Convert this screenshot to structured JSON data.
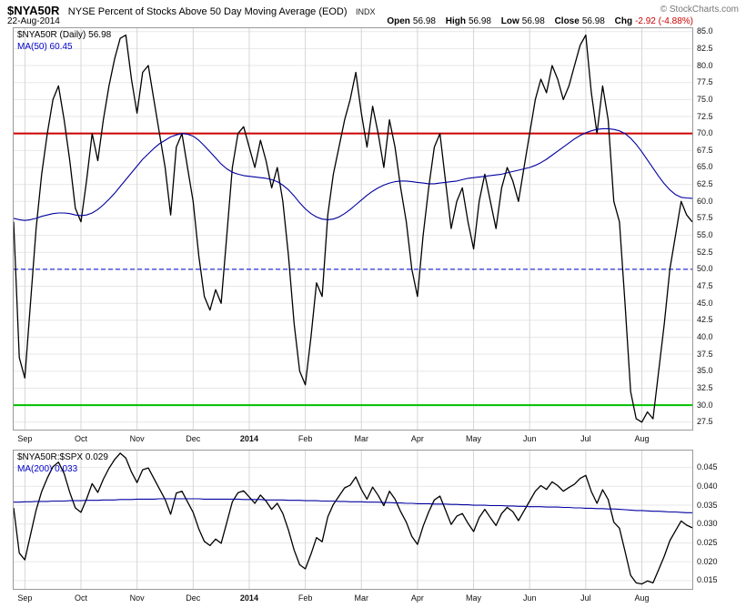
{
  "header": {
    "symbol": "$NYA50R",
    "title": "NYSE Percent of Stocks Above 50 Day Moving Average (EOD)",
    "exchange": "INDX",
    "copyright": "© StockCharts.com",
    "date": "22-Aug-2014",
    "quote": {
      "open_label": "Open",
      "open_value": "56.98",
      "high_label": "High",
      "high_value": "56.98",
      "low_label": "Low",
      "low_value": "56.98",
      "close_label": "Close",
      "close_value": "56.98",
      "chg_label": "Chg",
      "chg_value": "-2.92 (-4.88%)"
    }
  },
  "colors": {
    "price": "#000000",
    "ma": "#0000cc",
    "overbought_line": "#cc0000",
    "midline": "#0000cc",
    "oversold_line": "#00c000",
    "chg_negative": "#cc0000"
  },
  "chart_data": [
    {
      "type": "line",
      "title": "$NYA50R (Daily)",
      "legend": [
        {
          "label": "$NYA50R (Daily) 56.98",
          "color": "#000000"
        },
        {
          "label": "MA(50) 60.45",
          "color": "#0000cc"
        }
      ],
      "x_categories": [
        "Sep",
        "Oct",
        "Nov",
        "Dec",
        "2014",
        "Feb",
        "Mar",
        "Apr",
        "May",
        "Jun",
        "Jul",
        "Aug"
      ],
      "month_start_indices": [
        2,
        12,
        22,
        32,
        42,
        52,
        62,
        72,
        82,
        92,
        102,
        112
      ],
      "y_ticks": [
        "85.0",
        "82.5",
        "80.0",
        "77.5",
        "75.0",
        "72.5",
        "70.0",
        "67.5",
        "65.0",
        "62.5",
        "60.0",
        "57.5",
        "55.0",
        "52.5",
        "50.0",
        "47.5",
        "45.0",
        "42.5",
        "40.0",
        "37.5",
        "35.0",
        "32.5",
        "30.0",
        "27.5"
      ],
      "ylim": [
        26.4,
        85.5
      ],
      "hlines": [
        {
          "value": 70.0,
          "color": "#cc0000",
          "width": 2,
          "style": "solid"
        },
        {
          "value": 50.0,
          "color": "#0000cc",
          "width": 1,
          "style": "dashed"
        },
        {
          "value": 30.0,
          "color": "#00c000",
          "width": 2,
          "style": "solid"
        }
      ],
      "series": [
        {
          "name": "price-line",
          "color": "#000000",
          "width": 1.3,
          "values": [
            57,
            37,
            34,
            45,
            56,
            64,
            70,
            75,
            77,
            72,
            66,
            59,
            57,
            63,
            70,
            66,
            72,
            77,
            81,
            84,
            84.5,
            78,
            73,
            79,
            80,
            75,
            70,
            65,
            58,
            68,
            70,
            65,
            60,
            52,
            46,
            44,
            47,
            45,
            55,
            65,
            70,
            71,
            68,
            65,
            69,
            66,
            62,
            65,
            60,
            52,
            42,
            35,
            33,
            40,
            48,
            46,
            58,
            64,
            68,
            72,
            75,
            79,
            73,
            68,
            74,
            70,
            65,
            72,
            68,
            62,
            57,
            50,
            46,
            55,
            62,
            68,
            70,
            63,
            56,
            60,
            62,
            57,
            53,
            60,
            64,
            60,
            56,
            62,
            65,
            63,
            60,
            65,
            70,
            75,
            78,
            76,
            80,
            78,
            75,
            77,
            80,
            83,
            84.5,
            76,
            70,
            77,
            72,
            60,
            57,
            45,
            32,
            28,
            27.5,
            29,
            28,
            35,
            42,
            50,
            55,
            60,
            58,
            56.98
          ]
        },
        {
          "name": "ma50-line",
          "color": "#0000a0",
          "width": 1.1,
          "values": [
            57.5,
            57.3,
            57.2,
            57.3,
            57.5,
            57.8,
            58.0,
            58.2,
            58.3,
            58.3,
            58.2,
            58.0,
            57.9,
            58.0,
            58.3,
            58.8,
            59.5,
            60.3,
            61.2,
            62.2,
            63.2,
            64.2,
            65.2,
            66.2,
            67.0,
            67.8,
            68.5,
            69.0,
            69.5,
            69.8,
            70.0,
            69.9,
            69.6,
            69.0,
            68.2,
            67.3,
            66.4,
            65.5,
            64.8,
            64.3,
            64.0,
            63.8,
            63.7,
            63.6,
            63.5,
            63.4,
            63.2,
            62.9,
            62.4,
            61.7,
            60.8,
            59.8,
            58.9,
            58.2,
            57.7,
            57.4,
            57.3,
            57.4,
            57.7,
            58.2,
            58.8,
            59.5,
            60.2,
            60.9,
            61.5,
            62.0,
            62.4,
            62.7,
            62.9,
            63.0,
            63.0,
            62.9,
            62.8,
            62.7,
            62.6,
            62.6,
            62.7,
            62.8,
            62.9,
            63.0,
            63.2,
            63.4,
            63.5,
            63.6,
            63.7,
            63.8,
            63.9,
            64.0,
            64.2,
            64.4,
            64.6,
            64.8,
            65.0,
            65.3,
            65.7,
            66.2,
            66.8,
            67.4,
            68.0,
            68.6,
            69.2,
            69.7,
            70.1,
            70.4,
            70.6,
            70.7,
            70.7,
            70.6,
            70.4,
            70.0,
            69.3,
            68.4,
            67.3,
            66.1,
            64.9,
            63.7,
            62.6,
            61.7,
            61.0,
            60.6,
            60.5,
            60.45
          ]
        }
      ]
    },
    {
      "type": "line",
      "title": "$NYA50R:$SPX ratio",
      "legend": [
        {
          "label": "$NYA50R:$SPX 0.029",
          "color": "#000000"
        },
        {
          "label": "MA(200) 0.033",
          "color": "#0000cc"
        }
      ],
      "x_categories": [
        "Sep",
        "Oct",
        "Nov",
        "Dec",
        "2014",
        "Feb",
        "Mar",
        "Apr",
        "May",
        "Jun",
        "Jul",
        "Aug"
      ],
      "month_start_indices": [
        2,
        12,
        22,
        32,
        42,
        52,
        62,
        72,
        82,
        92,
        102,
        112
      ],
      "y_ticks": [
        "0.045",
        "0.040",
        "0.035",
        "0.030",
        "0.025",
        "0.020",
        "0.015"
      ],
      "ylim": [
        0.0128,
        0.0495
      ],
      "hlines": [],
      "series": [
        {
          "name": "ratio-line",
          "color": "#000000",
          "width": 1.3,
          "values": [
            0.0343,
            0.0223,
            0.0205,
            0.0271,
            0.0337,
            0.0386,
            0.0422,
            0.0452,
            0.0464,
            0.0434,
            0.0384,
            0.0343,
            0.0331,
            0.0366,
            0.0407,
            0.0384,
            0.0419,
            0.0448,
            0.0471,
            0.0488,
            0.0475,
            0.0438,
            0.041,
            0.0444,
            0.0449,
            0.0421,
            0.0393,
            0.0365,
            0.0326,
            0.0382,
            0.0387,
            0.0359,
            0.0331,
            0.0287,
            0.0254,
            0.0243,
            0.026,
            0.0249,
            0.0304,
            0.0359,
            0.0383,
            0.0388,
            0.0372,
            0.0355,
            0.0377,
            0.0361,
            0.0339,
            0.0355,
            0.0328,
            0.0284,
            0.0231,
            0.0192,
            0.0181,
            0.022,
            0.0264,
            0.0253,
            0.0319,
            0.0352,
            0.0374,
            0.0396,
            0.0403,
            0.0425,
            0.0392,
            0.0366,
            0.0398,
            0.0376,
            0.0349,
            0.0387,
            0.0366,
            0.0333,
            0.0305,
            0.0267,
            0.0246,
            0.0294,
            0.0332,
            0.0364,
            0.0374,
            0.0337,
            0.0299,
            0.0321,
            0.0328,
            0.0302,
            0.028,
            0.0317,
            0.0339,
            0.0317,
            0.0296,
            0.0328,
            0.0344,
            0.0333,
            0.0309,
            0.0335,
            0.0361,
            0.0387,
            0.0402,
            0.0392,
            0.0412,
            0.0402,
            0.0387,
            0.0397,
            0.0406,
            0.0421,
            0.0429,
            0.0386,
            0.0355,
            0.0391,
            0.0365,
            0.0305,
            0.0289,
            0.0228,
            0.0164,
            0.0144,
            0.0141,
            0.0149,
            0.0144,
            0.0179,
            0.0215,
            0.0256,
            0.0282,
            0.0308,
            0.0297,
            0.029
          ]
        },
        {
          "name": "ma200-line",
          "color": "#0000a0",
          "width": 1.1,
          "values": [
            0.0358,
            0.0358,
            0.0359,
            0.0359,
            0.036,
            0.036,
            0.036,
            0.0361,
            0.0361,
            0.0361,
            0.0362,
            0.0362,
            0.0362,
            0.0363,
            0.0363,
            0.0363,
            0.0364,
            0.0364,
            0.0364,
            0.0365,
            0.0365,
            0.0365,
            0.0366,
            0.0366,
            0.0366,
            0.0366,
            0.0367,
            0.0367,
            0.0367,
            0.0367,
            0.0367,
            0.0367,
            0.0367,
            0.0367,
            0.0366,
            0.0366,
            0.0366,
            0.0366,
            0.0366,
            0.0366,
            0.0366,
            0.0365,
            0.0365,
            0.0365,
            0.0365,
            0.0364,
            0.0364,
            0.0364,
            0.0364,
            0.0363,
            0.0363,
            0.0363,
            0.0362,
            0.0362,
            0.0362,
            0.0361,
            0.0361,
            0.0361,
            0.036,
            0.036,
            0.0359,
            0.0359,
            0.0359,
            0.0358,
            0.0358,
            0.0358,
            0.0357,
            0.0357,
            0.0356,
            0.0356,
            0.0355,
            0.0355,
            0.0354,
            0.0354,
            0.0354,
            0.0353,
            0.0353,
            0.0353,
            0.0352,
            0.0352,
            0.0351,
            0.0351,
            0.035,
            0.035,
            0.035,
            0.0349,
            0.0349,
            0.0349,
            0.0348,
            0.0348,
            0.0347,
            0.0347,
            0.0346,
            0.0346,
            0.0346,
            0.0345,
            0.0345,
            0.0345,
            0.0344,
            0.0344,
            0.0343,
            0.0343,
            0.0342,
            0.0342,
            0.0341,
            0.0341,
            0.034,
            0.034,
            0.0339,
            0.0338,
            0.0337,
            0.0336,
            0.0336,
            0.0335,
            0.0334,
            0.0334,
            0.0333,
            0.0332,
            0.0332,
            0.0331,
            0.033,
            0.033
          ]
        }
      ]
    }
  ]
}
